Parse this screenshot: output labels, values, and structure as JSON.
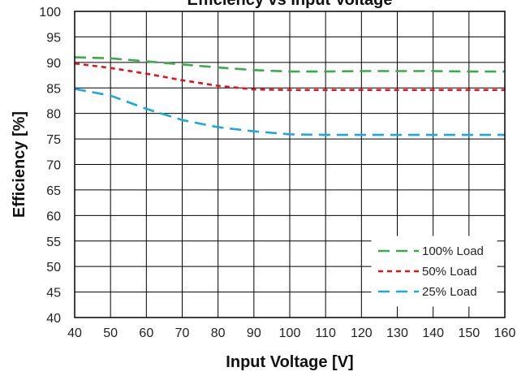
{
  "chart_data": {
    "type": "line",
    "title": "Efficiency vs Input Voltage",
    "xlabel": "Input Voltage [V]",
    "ylabel": "Efficiency [%]",
    "xlim": [
      40,
      160
    ],
    "ylim": [
      40,
      100
    ],
    "xticks": [
      40,
      50,
      60,
      70,
      80,
      90,
      100,
      110,
      120,
      130,
      140,
      150,
      160
    ],
    "yticks": [
      40,
      45,
      50,
      55,
      60,
      65,
      70,
      75,
      80,
      85,
      90,
      95,
      100
    ],
    "grid": true,
    "legend_position": "bottom-right",
    "x": [
      40,
      50,
      60,
      70,
      80,
      90,
      100,
      110,
      120,
      130,
      140,
      150,
      160
    ],
    "series": [
      {
        "name": "100% Load",
        "color": "#3aaa4a",
        "dash": "long-dash",
        "values": [
          91.0,
          90.8,
          90.2,
          89.6,
          89.0,
          88.5,
          88.2,
          88.2,
          88.3,
          88.3,
          88.3,
          88.2,
          88.2
        ]
      },
      {
        "name": "50% Load",
        "color": "#e0141e",
        "dash": "short-dash",
        "values": [
          89.8,
          88.9,
          87.8,
          86.5,
          85.4,
          84.7,
          84.6,
          84.6,
          84.6,
          84.6,
          84.6,
          84.6,
          84.6
        ]
      },
      {
        "name": "25% Load",
        "color": "#19a8df",
        "dash": "long-dash",
        "values": [
          84.8,
          83.5,
          80.9,
          78.7,
          77.3,
          76.5,
          75.9,
          75.8,
          75.8,
          75.8,
          75.8,
          75.8,
          75.8
        ]
      }
    ]
  }
}
